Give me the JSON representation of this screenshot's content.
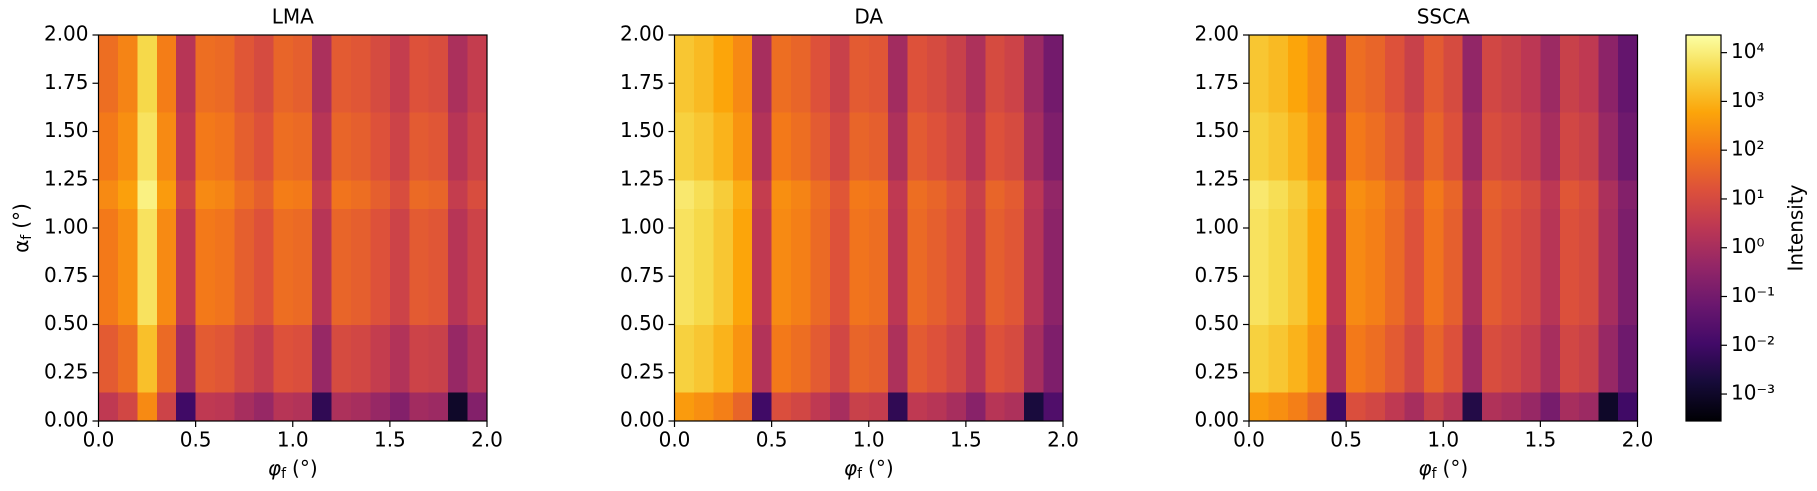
{
  "chart_data": [
    {
      "type": "heatmap",
      "title": "LMA",
      "xlabel": {
        "symbol": "φ",
        "subscript": "f",
        "unit": "(°)"
      },
      "ylabel": {
        "symbol": "α",
        "subscript": "f",
        "unit": "(°)"
      },
      "xlim": [
        0,
        2
      ],
      "ylim": [
        0,
        2
      ],
      "xticks": [
        {
          "value": 0,
          "label": "0.0"
        },
        {
          "value": 0.5,
          "label": "0.5"
        },
        {
          "value": 1,
          "label": "1.0"
        },
        {
          "value": 1.5,
          "label": "1.5"
        },
        {
          "value": 2,
          "label": "2.0"
        }
      ],
      "yticks": [
        {
          "value": 0,
          "label": "0.00"
        },
        {
          "value": 0.25,
          "label": "0.25"
        },
        {
          "value": 0.5,
          "label": "0.50"
        },
        {
          "value": 0.75,
          "label": "0.75"
        },
        {
          "value": 1,
          "label": "1.00"
        },
        {
          "value": 1.25,
          "label": "1.25"
        },
        {
          "value": 1.5,
          "label": "1.50"
        },
        {
          "value": 1.75,
          "label": "1.75"
        },
        {
          "value": 2,
          "label": "2.00"
        }
      ],
      "x_edges": [
        0,
        0.1,
        0.2,
        0.3,
        0.4,
        0.5,
        0.6,
        0.7,
        0.8,
        0.9,
        1,
        1.1,
        1.2,
        1.3,
        1.4,
        1.5,
        1.6,
        1.7,
        1.8,
        1.9,
        2
      ],
      "y_edges": [
        0,
        0.15,
        0.5,
        1.1,
        1.25,
        1.6,
        2
      ],
      "z": [
        [
          3,
          8,
          200,
          6,
          0.01,
          3,
          2.5,
          1,
          0.5,
          2,
          1.6,
          0.005,
          1.3,
          1,
          0.5,
          0.2,
          0.8,
          0.6,
          0.001,
          0.2
        ],
        [
          25,
          60,
          1600,
          50,
          0.8,
          25,
          20,
          8,
          4,
          16,
          13,
          0.5,
          10,
          8,
          4,
          1.6,
          6,
          5,
          0.5,
          1.6
        ],
        [
          100,
          250,
          6000,
          200,
          3,
          100,
          80,
          30,
          16,
          60,
          50,
          2,
          40,
          30,
          16,
          6,
          25,
          20,
          2,
          6
        ],
        [
          200,
          500,
          12000,
          400,
          6,
          200,
          160,
          60,
          30,
          120,
          100,
          4,
          80,
          60,
          30,
          12,
          50,
          40,
          4,
          12
        ],
        [
          100,
          250,
          6000,
          200,
          3,
          100,
          80,
          30,
          16,
          60,
          50,
          2,
          40,
          30,
          16,
          6,
          25,
          20,
          2,
          6
        ],
        [
          60,
          160,
          4000,
          120,
          2,
          60,
          50,
          20,
          10,
          40,
          30,
          1.2,
          25,
          20,
          10,
          4,
          16,
          12,
          1.2,
          4
        ]
      ]
    },
    {
      "type": "heatmap",
      "title": "DA",
      "xlabel": {
        "symbol": "φ",
        "subscript": "f",
        "unit": "(°)"
      },
      "xlim": [
        0,
        2
      ],
      "ylim": [
        0,
        2
      ],
      "xticks": [
        {
          "value": 0,
          "label": "0.0"
        },
        {
          "value": 0.5,
          "label": "0.5"
        },
        {
          "value": 1,
          "label": "1.0"
        },
        {
          "value": 1.5,
          "label": "1.5"
        },
        {
          "value": 2,
          "label": "2.0"
        }
      ],
      "yticks": [
        {
          "value": 0,
          "label": "0.00"
        },
        {
          "value": 0.25,
          "label": "0.25"
        },
        {
          "value": 0.5,
          "label": "0.50"
        },
        {
          "value": 0.75,
          "label": "0.75"
        },
        {
          "value": 1,
          "label": "1.00"
        },
        {
          "value": 1.25,
          "label": "1.25"
        },
        {
          "value": 1.5,
          "label": "1.50"
        },
        {
          "value": 1.75,
          "label": "1.75"
        },
        {
          "value": 2,
          "label": "2.00"
        }
      ],
      "x_edges": [
        0,
        0.1,
        0.2,
        0.3,
        0.4,
        0.5,
        0.6,
        0.7,
        0.8,
        0.9,
        1,
        1.1,
        1.2,
        1.3,
        1.4,
        1.5,
        1.6,
        1.7,
        1.8,
        1.9,
        2
      ],
      "y_edges": [
        0,
        0.15,
        0.5,
        1.1,
        1.25,
        1.6,
        2
      ],
      "z": [
        [
          400,
          250,
          130,
          40,
          0.01,
          13,
          8,
          3,
          1,
          5,
          4,
          0.005,
          3,
          2,
          1,
          0.25,
          2,
          1.3,
          0.002,
          0.02
        ],
        [
          3000,
          2000,
          1000,
          300,
          1.6,
          100,
          60,
          25,
          8,
          40,
          30,
          1.3,
          25,
          16,
          8,
          2,
          16,
          10,
          1,
          0.16
        ],
        [
          6000,
          4000,
          2000,
          600,
          3,
          200,
          130,
          50,
          16,
          80,
          60,
          2.5,
          50,
          30,
          16,
          4,
          30,
          20,
          2,
          0.3
        ],
        [
          8000,
          5000,
          2500,
          800,
          4,
          250,
          160,
          60,
          20,
          100,
          80,
          3,
          60,
          40,
          20,
          5,
          40,
          25,
          2.5,
          0.4
        ],
        [
          3000,
          2000,
          1000,
          300,
          1.6,
          100,
          60,
          25,
          8,
          40,
          30,
          1.3,
          25,
          16,
          8,
          2,
          16,
          10,
          1,
          0.16
        ],
        [
          2000,
          1300,
          600,
          200,
          1,
          60,
          40,
          16,
          5,
          25,
          20,
          0.8,
          16,
          10,
          5,
          1.3,
          10,
          6,
          0.6,
          0.1
        ]
      ]
    },
    {
      "type": "heatmap",
      "title": "SSCA",
      "xlabel": {
        "symbol": "φ",
        "subscript": "f",
        "unit": "(°)"
      },
      "xlim": [
        0,
        2
      ],
      "ylim": [
        0,
        2
      ],
      "xticks": [
        {
          "value": 0,
          "label": "0.0"
        },
        {
          "value": 0.5,
          "label": "0.5"
        },
        {
          "value": 1,
          "label": "1.0"
        },
        {
          "value": 1.5,
          "label": "1.5"
        },
        {
          "value": 2,
          "label": "2.0"
        }
      ],
      "yticks": [
        {
          "value": 0,
          "label": "0.00"
        },
        {
          "value": 0.25,
          "label": "0.25"
        },
        {
          "value": 0.5,
          "label": "0.50"
        },
        {
          "value": 0.75,
          "label": "0.75"
        },
        {
          "value": 1,
          "label": "1.00"
        },
        {
          "value": 1.25,
          "label": "1.25"
        },
        {
          "value": 1.5,
          "label": "1.50"
        },
        {
          "value": 1.75,
          "label": "1.75"
        },
        {
          "value": 2,
          "label": "2.00"
        }
      ],
      "x_edges": [
        0,
        0.1,
        0.2,
        0.3,
        0.4,
        0.5,
        0.6,
        0.7,
        0.8,
        0.9,
        1,
        1.1,
        1.2,
        1.3,
        1.4,
        1.5,
        1.6,
        1.7,
        1.8,
        1.9,
        2
      ],
      "y_edges": [
        0,
        0.15,
        0.5,
        1.1,
        1.25,
        1.6,
        2
      ],
      "z": [
        [
          400,
          250,
          130,
          40,
          0.01,
          13,
          8,
          3,
          1,
          5,
          2,
          0.003,
          1.5,
          1,
          0.5,
          0.12,
          1,
          0.6,
          0.001,
          0.01
        ],
        [
          3000,
          2000,
          1000,
          300,
          1.6,
          100,
          60,
          25,
          8,
          40,
          15,
          0.6,
          12,
          8,
          4,
          1,
          8,
          5,
          0.5,
          0.08
        ],
        [
          6000,
          4000,
          2000,
          600,
          3,
          200,
          130,
          50,
          16,
          80,
          30,
          1.2,
          25,
          15,
          8,
          2,
          15,
          10,
          1,
          0.15
        ],
        [
          8000,
          5000,
          2500,
          800,
          4,
          250,
          160,
          60,
          20,
          100,
          40,
          1.5,
          30,
          20,
          10,
          2.5,
          20,
          12,
          1.2,
          0.2
        ],
        [
          3000,
          2000,
          1000,
          300,
          1.6,
          100,
          60,
          25,
          8,
          40,
          15,
          0.6,
          12,
          8,
          4,
          1,
          8,
          5,
          0.5,
          0.08
        ],
        [
          2000,
          1300,
          600,
          200,
          1,
          60,
          40,
          16,
          5,
          25,
          10,
          0.4,
          8,
          5,
          2.5,
          0.6,
          5,
          3,
          0.3,
          0.05
        ]
      ]
    },
    {
      "type": "colorbar",
      "label": "Intensity",
      "colormap": "inferno",
      "log": true,
      "clim": [
        0.00028,
        23000
      ],
      "ticks": [
        {
          "value": 0.001,
          "label": "10⁻³"
        },
        {
          "value": 0.01,
          "label": "10⁻²"
        },
        {
          "value": 0.1,
          "label": "10⁻¹"
        },
        {
          "value": 1,
          "label": "10⁰"
        },
        {
          "value": 10,
          "label": "10¹"
        },
        {
          "value": 100,
          "label": "10²"
        },
        {
          "value": 1000,
          "label": "10³"
        },
        {
          "value": 10000,
          "label": "10⁴"
        }
      ]
    }
  ]
}
